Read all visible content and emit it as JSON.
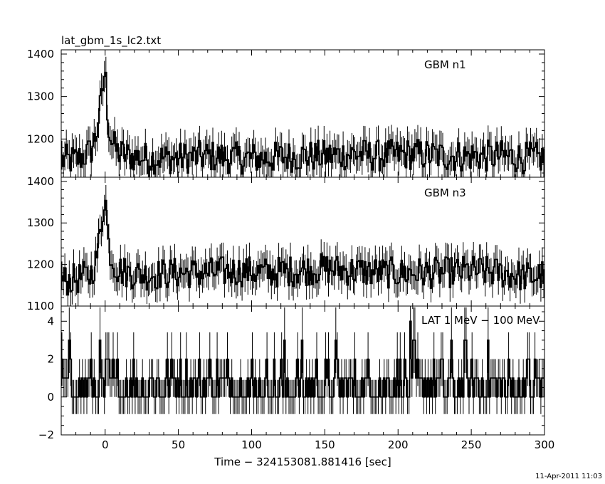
{
  "file_title": "lat_gbm_1s_lc2.txt",
  "timestamp": "11-Apr-2011 11:03",
  "chart_data": [
    {
      "type": "line",
      "style": "histogram-with-errorbars",
      "series_label": "GBM n1",
      "xlim": [
        -30,
        300
      ],
      "ylim": [
        1110,
        1410
      ],
      "yticks": [
        1200,
        1300,
        1400
      ],
      "ytick_labels": [
        "1200",
        "1300",
        "1400"
      ],
      "x": [
        -30,
        -20,
        -10,
        -6,
        -4,
        -2,
        -1,
        0,
        1,
        2,
        4,
        8,
        15,
        30,
        50,
        70,
        90,
        110,
        130,
        150,
        170,
        190,
        210,
        230,
        250,
        270,
        290,
        300
      ],
      "y": [
        1150,
        1150,
        1170,
        1210,
        1260,
        1300,
        1340,
        1365,
        1300,
        1240,
        1200,
        1170,
        1160,
        1155,
        1155,
        1160,
        1155,
        1155,
        1160,
        1160,
        1165,
        1160,
        1165,
        1160,
        1160,
        1160,
        1155,
        1155
      ]
    },
    {
      "type": "line",
      "style": "histogram-with-errorbars",
      "series_label": "GBM n3",
      "xlim": [
        -30,
        300
      ],
      "ylim": [
        1100,
        1410
      ],
      "yticks": [
        1100,
        1200,
        1300,
        1400
      ],
      "ytick_labels": [
        "1100",
        "1200",
        "1300",
        "1400"
      ],
      "x": [
        -30,
        -20,
        -10,
        -6,
        -4,
        -2,
        -1,
        0,
        1,
        2,
        4,
        8,
        15,
        30,
        50,
        70,
        90,
        110,
        130,
        150,
        170,
        190,
        210,
        230,
        250,
        270,
        290,
        300
      ],
      "y": [
        1160,
        1165,
        1175,
        1210,
        1260,
        1310,
        1350,
        1375,
        1320,
        1260,
        1220,
        1190,
        1180,
        1175,
        1180,
        1180,
        1185,
        1180,
        1185,
        1190,
        1185,
        1180,
        1180,
        1180,
        1185,
        1180,
        1170,
        1175
      ]
    },
    {
      "type": "line",
      "style": "histogram-with-errorbars",
      "series_label": "LAT 1 MeV − 100 MeV",
      "xlim": [
        -30,
        300
      ],
      "ylim": [
        -2,
        4.8
      ],
      "yticks": [
        -2,
        0,
        2,
        4
      ],
      "ytick_labels": [
        "−2",
        "0",
        "2",
        "4"
      ],
      "x": [
        -30,
        0,
        50,
        100,
        150,
        200,
        250,
        300
      ],
      "y": [
        0.5,
        0.5,
        0.5,
        0.5,
        0.5,
        0.5,
        0.5,
        0.5
      ],
      "xticks": [
        0,
        50,
        100,
        150,
        200,
        250,
        300
      ],
      "xtick_labels": [
        "0",
        "50",
        "100",
        "150",
        "200",
        "250",
        "300"
      ],
      "xlabel": "Time − 324153081.881416 [sec]"
    }
  ]
}
